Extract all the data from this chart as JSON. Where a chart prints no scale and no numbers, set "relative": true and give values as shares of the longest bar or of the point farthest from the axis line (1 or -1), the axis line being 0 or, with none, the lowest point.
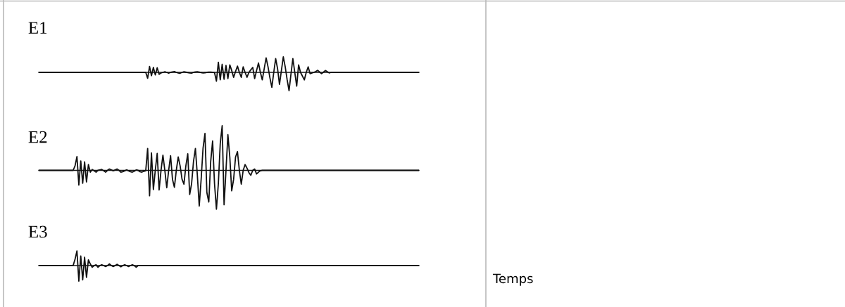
{
  "chart_data": [
    {
      "type": "line",
      "title": "E1",
      "relative": true,
      "line_style": "solid",
      "categories": [
        null,
        null,
        null,
        null,
        null,
        null,
        null,
        null,
        null,
        null,
        null,
        null,
        null,
        null,
        null,
        null,
        null,
        null,
        null,
        null,
        null,
        null,
        null,
        null,
        null,
        null,
        null,
        null,
        null,
        null,
        null,
        null,
        null,
        null,
        null,
        null,
        null,
        null,
        null,
        null,
        null,
        null,
        null,
        null,
        null,
        null,
        null,
        null,
        null,
        null,
        null,
        null,
        null,
        null,
        null,
        null,
        null,
        null,
        null,
        null,
        null,
        null,
        null,
        null,
        null,
        null,
        null,
        null,
        null,
        null,
        null,
        null,
        null,
        null,
        null,
        null,
        null,
        null,
        null,
        null,
        null,
        null,
        null,
        null,
        null,
        null,
        null,
        null,
        null,
        null,
        null,
        null,
        null,
        null,
        null,
        null,
        null,
        null,
        null,
        null,
        null,
        null,
        null,
        null,
        null,
        null,
        null,
        null,
        null,
        null,
        null,
        null,
        null,
        null,
        null,
        null,
        null,
        null,
        null,
        null,
        null,
        null,
        null,
        null,
        null,
        null,
        null,
        null,
        null,
        null,
        null,
        null,
        null,
        null,
        null,
        null,
        null,
        null,
        null,
        null,
        null,
        null,
        null,
        null,
        null,
        null,
        null,
        null,
        null,
        null,
        null,
        null,
        null,
        null,
        null,
        null,
        null,
        null,
        null,
        null,
        null,
        null,
        null,
        null,
        null,
        null,
        null,
        null,
        null,
        null,
        null,
        null,
        null,
        null,
        null,
        null,
        null,
        null,
        null,
        null,
        null,
        null,
        null,
        null,
        null,
        null,
        null,
        null,
        null,
        null,
        null,
        null,
        null,
        null,
        null,
        null,
        null,
        null,
        null,
        null
      ],
      "series": [
        {
          "color": "#111111",
          "values": [
            0,
            0,
            0,
            0,
            0,
            0,
            0,
            0,
            0,
            0,
            0,
            0,
            0,
            0,
            0,
            0,
            0,
            0,
            0,
            0,
            0,
            0,
            0,
            0,
            0,
            0,
            0,
            0,
            0,
            0,
            0,
            0,
            0,
            0,
            0,
            0,
            0,
            0,
            0,
            0,
            0,
            0,
            0,
            0,
            0,
            0,
            0,
            0,
            0,
            0,
            0,
            0,
            0,
            0,
            0,
            0,
            0,
            -0.32,
            0.32,
            -0.18,
            0.27,
            -0.14,
            0.25,
            -0.11,
            -0.03,
            0,
            0.03,
            0,
            -0.04,
            0,
            0.02,
            0.04,
            0,
            -0.03,
            -0.05,
            0,
            0.03,
            0.01,
            -0.01,
            -0.03,
            -0.04,
            0,
            0.02,
            0.03,
            0.01,
            -0.01,
            -0.03,
            -0.02,
            0,
            0.01,
            0.01,
            0,
            -0.01,
            -0.48,
            0.55,
            -0.41,
            0.44,
            -0.38,
            0.38,
            -0.34,
            0.41,
            0.1,
            -0.27,
            0.05,
            0.34,
            0,
            -0.27,
            0.3,
            0,
            -0.27,
            0,
            0.14,
            0.27,
            -0.34,
            0.1,
            0.51,
            0,
            -0.41,
            0.2,
            0.79,
            0.3,
            -0.3,
            -0.82,
            0,
            0.75,
            0.2,
            -0.66,
            0.1,
            0.85,
            0.3,
            -0.4,
            -1.0,
            -0.1,
            0.75,
            0,
            -0.75,
            0.41,
            0,
            -0.2,
            -0.41,
            0,
            0.3,
            -0.07,
            -0.03,
            0,
            0.05,
            0.11,
            0.02,
            -0.07,
            0.01,
            0.1,
            0.04,
            -0.03,
            0,
            0,
            0,
            0,
            0,
            0,
            0,
            0,
            0,
            0,
            0,
            0,
            0,
            0,
            0,
            0,
            0,
            0,
            0,
            0,
            0,
            0,
            0,
            0,
            0,
            0,
            0,
            0,
            0,
            0,
            0,
            0,
            0,
            0,
            0,
            0,
            0,
            0,
            0,
            0,
            0,
            0,
            0,
            0,
            0,
            0,
            0
          ]
        }
      ]
    },
    {
      "type": "line",
      "title": "E2",
      "relative": true,
      "line_style": "solid",
      "categories": [
        null,
        null,
        null,
        null,
        null,
        null,
        null,
        null,
        null,
        null,
        null,
        null,
        null,
        null,
        null,
        null,
        null,
        null,
        null,
        null,
        null,
        null,
        null,
        null,
        null,
        null,
        null,
        null,
        null,
        null,
        null,
        null,
        null,
        null,
        null,
        null,
        null,
        null,
        null,
        null,
        null,
        null,
        null,
        null,
        null,
        null,
        null,
        null,
        null,
        null,
        null,
        null,
        null,
        null,
        null,
        null,
        null,
        null,
        null,
        null,
        null,
        null,
        null,
        null,
        null,
        null,
        null,
        null,
        null,
        null,
        null,
        null,
        null,
        null,
        null,
        null,
        null,
        null,
        null,
        null,
        null,
        null,
        null,
        null,
        null,
        null,
        null,
        null,
        null,
        null,
        null,
        null,
        null,
        null,
        null,
        null,
        null,
        null,
        null,
        null,
        null,
        null,
        null,
        null,
        null,
        null,
        null,
        null,
        null,
        null,
        null,
        null,
        null,
        null,
        null,
        null,
        null,
        null,
        null,
        null,
        null,
        null,
        null,
        null,
        null,
        null,
        null,
        null,
        null,
        null,
        null,
        null,
        null,
        null,
        null,
        null,
        null,
        null,
        null,
        null,
        null,
        null,
        null,
        null,
        null,
        null,
        null,
        null,
        null,
        null,
        null,
        null,
        null,
        null,
        null,
        null,
        null,
        null,
        null,
        null,
        null,
        null,
        null,
        null,
        null,
        null,
        null,
        null,
        null,
        null,
        null,
        null,
        null,
        null,
        null,
        null,
        null,
        null,
        null,
        null,
        null,
        null,
        null,
        null,
        null,
        null,
        null,
        null,
        null,
        null,
        null,
        null,
        null,
        null,
        null,
        null,
        null,
        null,
        null,
        null
      ],
      "series": [
        {
          "color": "#111111",
          "values": [
            0,
            0,
            0,
            0,
            0,
            0,
            0,
            0,
            0,
            0,
            0,
            0,
            0,
            0,
            0,
            0,
            0,
            0,
            0,
            0.1,
            0.31,
            -0.33,
            0.21,
            -0.29,
            0.19,
            -0.26,
            0.13,
            -0.04,
            0.02,
            -0.01,
            -0.04,
            0,
            0.01,
            0.02,
            -0.01,
            -0.04,
            0,
            0.03,
            0.01,
            -0.01,
            0.01,
            0.03,
            0,
            -0.04,
            -0.03,
            -0.01,
            0.01,
            -0.01,
            -0.03,
            -0.04,
            -0.02,
            0.01,
            0,
            -0.03,
            -0.04,
            -0.02,
            -0.01,
            0.49,
            -0.57,
            0.39,
            -0.43,
            0,
            0.38,
            -0.44,
            0,
            0.34,
            0,
            -0.39,
            0,
            0.33,
            -0.2,
            -0.38,
            0,
            0.3,
            0.1,
            -0.2,
            -0.31,
            0.1,
            0.37,
            -0.54,
            -0.3,
            0.2,
            0.49,
            -0.1,
            -0.8,
            -0.2,
            0.5,
            0.83,
            -0.5,
            -0.71,
            0.2,
            0.66,
            -0.3,
            -0.87,
            -0.3,
            0.6,
            1.0,
            -0.77,
            0,
            0.8,
            0.3,
            -0.46,
            -0.2,
            0.3,
            0.42,
            0,
            -0.31,
            0,
            0.13,
            0.05,
            -0.05,
            -0.11,
            0,
            0.03,
            -0.08,
            -0.04,
            -0.01,
            0,
            0,
            0,
            0,
            0,
            0,
            0,
            0,
            0,
            0,
            0,
            0,
            0,
            0,
            0,
            0,
            0,
            0,
            0,
            0,
            0,
            0,
            0,
            0,
            0,
            0,
            0,
            0,
            0,
            0,
            0,
            0,
            0,
            0,
            0,
            0,
            0,
            0,
            0,
            0,
            0,
            0,
            0,
            0,
            0,
            0,
            0,
            0,
            0,
            0,
            0,
            0,
            0,
            0,
            0,
            0,
            0,
            0,
            0,
            0,
            0,
            0,
            0,
            0,
            0,
            0,
            0,
            0,
            0,
            0,
            0,
            0,
            0,
            0,
            0,
            0,
            0,
            0,
            0,
            0,
            0,
            0,
            0
          ]
        }
      ]
    },
    {
      "type": "line",
      "title": "E3",
      "xlabel": "Temps",
      "relative": true,
      "line_style": "solid",
      "categories": [
        null,
        null,
        null,
        null,
        null,
        null,
        null,
        null,
        null,
        null,
        null,
        null,
        null,
        null,
        null,
        null,
        null,
        null,
        null,
        null,
        null,
        null,
        null,
        null,
        null,
        null,
        null,
        null,
        null,
        null,
        null,
        null,
        null,
        null,
        null,
        null,
        null,
        null,
        null,
        null,
        null,
        null,
        null,
        null,
        null,
        null,
        null,
        null,
        null,
        null,
        null,
        null,
        null,
        null,
        null,
        null,
        null,
        null,
        null,
        null,
        null,
        null,
        null,
        null,
        null,
        null,
        null,
        null,
        null,
        null,
        null,
        null,
        null,
        null,
        null,
        null,
        null,
        null,
        null,
        null,
        null,
        null,
        null,
        null,
        null,
        null,
        null,
        null,
        null,
        null,
        null,
        null,
        null,
        null,
        null,
        null,
        null,
        null,
        null,
        null,
        null,
        null,
        null,
        null,
        null,
        null,
        null,
        null,
        null,
        null,
        null,
        null,
        null,
        null,
        null,
        null,
        null,
        null,
        null,
        null,
        null,
        null,
        null,
        null,
        null,
        null,
        null,
        null,
        null,
        null,
        null,
        null,
        null,
        null,
        null,
        null,
        null,
        null,
        null,
        null,
        null,
        null,
        null,
        null,
        null,
        null,
        null,
        null,
        null,
        null,
        null,
        null,
        null,
        null,
        null,
        null,
        null,
        null,
        null,
        null,
        null,
        null,
        null,
        null,
        null,
        null,
        null,
        null,
        null,
        null,
        null,
        null,
        null,
        null,
        null,
        null,
        null,
        null,
        null,
        null,
        null,
        null,
        null,
        null,
        null,
        null,
        null,
        null,
        null,
        null,
        null,
        null,
        null,
        null,
        null,
        null,
        null,
        null,
        null,
        null
      ],
      "series": [
        {
          "color": "#111111",
          "values": [
            0,
            0,
            0,
            0,
            0,
            0,
            0,
            0,
            0,
            0,
            0,
            0,
            0,
            0,
            0,
            0,
            0,
            0,
            0,
            0.4,
            0.94,
            -1.0,
            0.61,
            -0.92,
            0.53,
            -0.76,
            0.37,
            0.1,
            -0.11,
            0,
            0.05,
            -0.11,
            0,
            0.05,
            0,
            -0.06,
            0,
            0.1,
            0,
            -0.06,
            0,
            0.08,
            0,
            -0.08,
            0,
            0.05,
            0,
            -0.06,
            0,
            0.05,
            0,
            -0.11,
            0,
            0,
            0,
            0,
            0,
            0,
            0,
            0,
            0,
            0,
            0,
            0,
            0,
            0,
            0,
            0,
            0,
            0,
            0,
            0,
            0,
            0,
            0,
            0,
            0,
            0,
            0,
            0,
            0,
            0,
            0,
            0,
            0,
            0,
            0,
            0,
            0,
            0,
            0,
            0,
            0,
            0,
            0,
            0,
            0,
            0,
            0,
            0,
            0,
            0,
            0,
            0,
            0,
            0,
            0,
            0,
            0,
            0,
            0,
            0,
            0,
            0,
            0,
            0,
            0,
            0,
            0,
            0,
            0,
            0,
            0,
            0,
            0,
            0,
            0,
            0,
            0,
            0,
            0,
            0,
            0,
            0,
            0,
            0,
            0,
            0,
            0,
            0,
            0,
            0,
            0,
            0,
            0,
            0,
            0,
            0,
            0,
            0,
            0,
            0,
            0,
            0,
            0,
            0,
            0,
            0,
            0,
            0,
            0,
            0,
            0,
            0,
            0,
            0,
            0,
            0,
            0,
            0,
            0,
            0,
            0,
            0,
            0,
            0,
            0,
            0,
            0,
            0,
            0,
            0,
            0,
            0,
            0,
            0,
            0,
            0,
            0,
            0,
            0,
            0,
            0,
            0,
            0,
            0,
            0,
            0,
            0,
            0
          ]
        }
      ]
    }
  ]
}
